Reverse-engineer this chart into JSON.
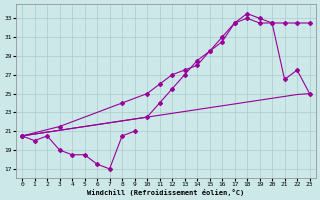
{
  "xlabel": "Windchill (Refroidissement éolien,°C)",
  "x_ticks": [
    0,
    1,
    2,
    3,
    4,
    5,
    6,
    7,
    8,
    9,
    10,
    11,
    12,
    13,
    14,
    15,
    16,
    17,
    18,
    19,
    20,
    21,
    22,
    23
  ],
  "y_ticks": [
    17,
    19,
    21,
    23,
    25,
    27,
    29,
    31,
    33
  ],
  "xlim": [
    -0.5,
    23.5
  ],
  "ylim": [
    16.0,
    34.5
  ],
  "bg_color": "#cce8e8",
  "grid_color": "#aacccc",
  "line_color": "#990099",
  "marker": "D",
  "marker_size": 2.0,
  "line_width": 0.8,
  "series1_x": [
    0,
    1,
    2,
    3,
    4,
    5,
    6,
    7,
    8,
    9
  ],
  "series1_y": [
    20.5,
    20.0,
    20.5,
    19.0,
    18.5,
    18.5,
    17.5,
    17.0,
    20.5,
    21.0
  ],
  "series2_x": [
    0,
    1,
    2,
    3,
    4,
    5,
    6,
    7,
    8,
    9,
    10,
    11,
    12,
    13,
    14,
    15,
    16,
    17,
    18,
    19,
    20,
    21,
    22,
    23
  ],
  "series2_y": [
    20.5,
    20.7,
    20.9,
    21.1,
    21.3,
    21.5,
    21.7,
    21.9,
    22.1,
    22.3,
    22.5,
    22.7,
    22.9,
    23.1,
    23.3,
    23.5,
    23.7,
    23.9,
    24.1,
    24.3,
    24.5,
    24.7,
    24.9,
    25.0
  ],
  "series3_x": [
    0,
    10,
    11,
    12,
    13,
    14,
    15,
    16,
    17,
    18,
    19,
    20,
    21,
    22,
    23
  ],
  "series3_y": [
    20.5,
    22.5,
    24.0,
    25.5,
    27.0,
    28.5,
    29.5,
    31.0,
    32.5,
    33.5,
    33.0,
    32.5,
    26.5,
    27.5,
    25.0
  ],
  "series4_x": [
    0,
    3,
    8,
    10,
    11,
    12,
    13,
    14,
    15,
    16,
    17,
    18,
    19,
    20,
    21,
    22,
    23
  ],
  "series4_y": [
    20.5,
    21.5,
    24.0,
    25.0,
    26.0,
    27.0,
    27.5,
    28.0,
    29.5,
    30.5,
    32.5,
    33.0,
    32.5,
    32.5,
    32.5,
    32.5,
    32.5
  ]
}
